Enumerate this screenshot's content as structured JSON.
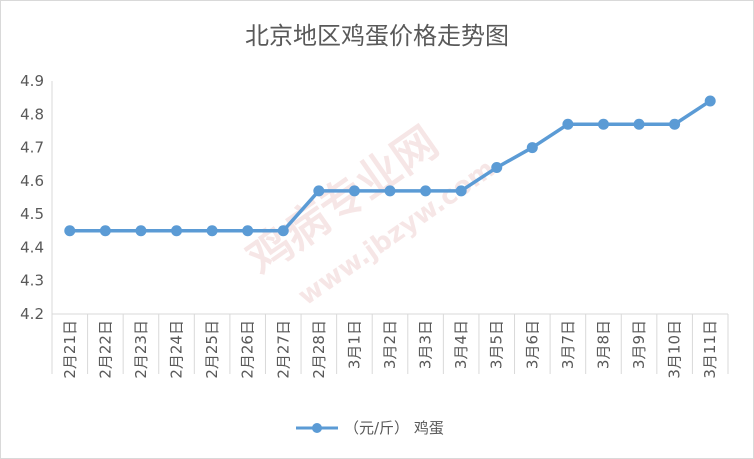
{
  "colors": {
    "series": "#5b9bd5",
    "axis": "#d9d9d9",
    "text": "#595959",
    "watermark": "#e8b8b8"
  },
  "legend": {
    "label": "（元/斤） 鸡蛋",
    "position": "bottom"
  },
  "chart_data": {
    "type": "line",
    "title": "北京地区鸡蛋价格走势图",
    "xlabel": "",
    "ylabel": "",
    "categories": [
      "2月21日",
      "2月22日",
      "2月23日",
      "2月24日",
      "2月25日",
      "2月26日",
      "2月27日",
      "2月28日",
      "3月1日",
      "3月2日",
      "3月3日",
      "3月4日",
      "3月5日",
      "3月6日",
      "3月7日",
      "3月8日",
      "3月9日",
      "3月10日",
      "3月11日"
    ],
    "series": [
      {
        "name": "（元/斤） 鸡蛋",
        "values": [
          4.45,
          4.45,
          4.45,
          4.45,
          4.45,
          4.45,
          4.45,
          4.57,
          4.57,
          4.57,
          4.57,
          4.57,
          4.64,
          4.7,
          4.77,
          4.77,
          4.77,
          4.77,
          4.84
        ]
      }
    ],
    "ylim": [
      4.2,
      4.9
    ],
    "yticks": [
      "4.2",
      "4.3",
      "4.4",
      "4.5",
      "4.6",
      "4.7",
      "4.8",
      "4.9"
    ],
    "grid": false,
    "legend": "bottom"
  }
}
